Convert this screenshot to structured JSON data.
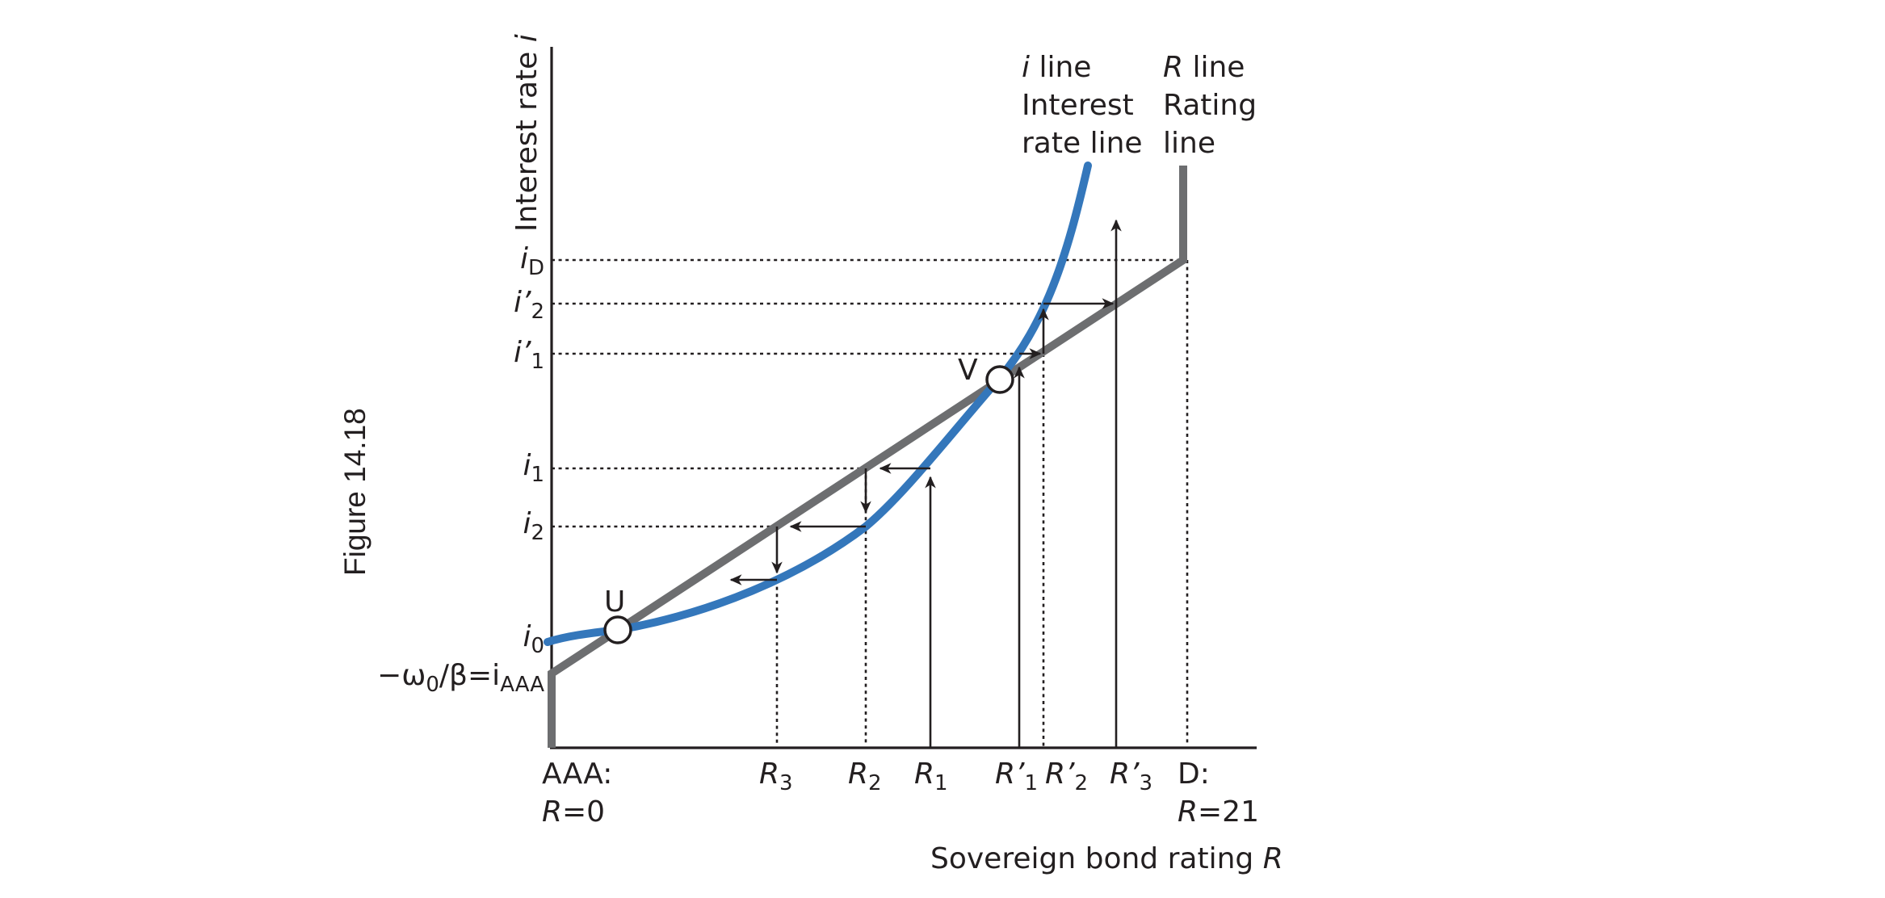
{
  "figure": {
    "caption": "Figure 14.18",
    "axes": {
      "y_label_text": "Interest rate ",
      "y_label_symbol": "i",
      "x_label_text": "Sovereign bond rating ",
      "x_label_symbol": "R"
    },
    "curves": {
      "i_line": {
        "symbol": "i",
        "line1_rest": " line",
        "line2": "Interest",
        "line3": "rate line",
        "color": "#3477bb"
      },
      "R_line": {
        "symbol": "R",
        "line1_rest": " line",
        "line2": "Rating",
        "line3": "line",
        "color": "#6d6e70"
      }
    },
    "equilibria": {
      "stable": "U",
      "unstable": "V"
    },
    "y_labels": {
      "iD": {
        "base": "i",
        "sub": "D"
      },
      "ip2": {
        "base": "i’",
        "sub": "2"
      },
      "ip1": {
        "base": "i’",
        "sub": "1"
      },
      "i1": {
        "base": "i",
        "sub": "1"
      },
      "i2": {
        "base": "i",
        "sub": "2"
      },
      "i0": {
        "base": "i",
        "sub": "0"
      },
      "iAAA": {
        "pre": "−ω",
        "pre_sub": "0",
        "mid": "/β=i",
        "sub": "AAA"
      }
    },
    "x_labels": {
      "AAA": {
        "line1": "AAA:",
        "line2_symbol": "R",
        "line2_rest": "=0"
      },
      "D": {
        "line1": "D:",
        "line2_symbol": "R",
        "line2_rest": "=21"
      },
      "R3": {
        "base": "R",
        "sub": "3"
      },
      "R2": {
        "base": "R",
        "sub": "2"
      },
      "R1": {
        "base": "R",
        "sub": "1"
      },
      "Rp1": {
        "base": "R’",
        "sub": "1"
      },
      "Rp2": {
        "base": "R’",
        "sub": "2"
      },
      "Rp3": {
        "base": "R’",
        "sub": "3"
      }
    }
  }
}
